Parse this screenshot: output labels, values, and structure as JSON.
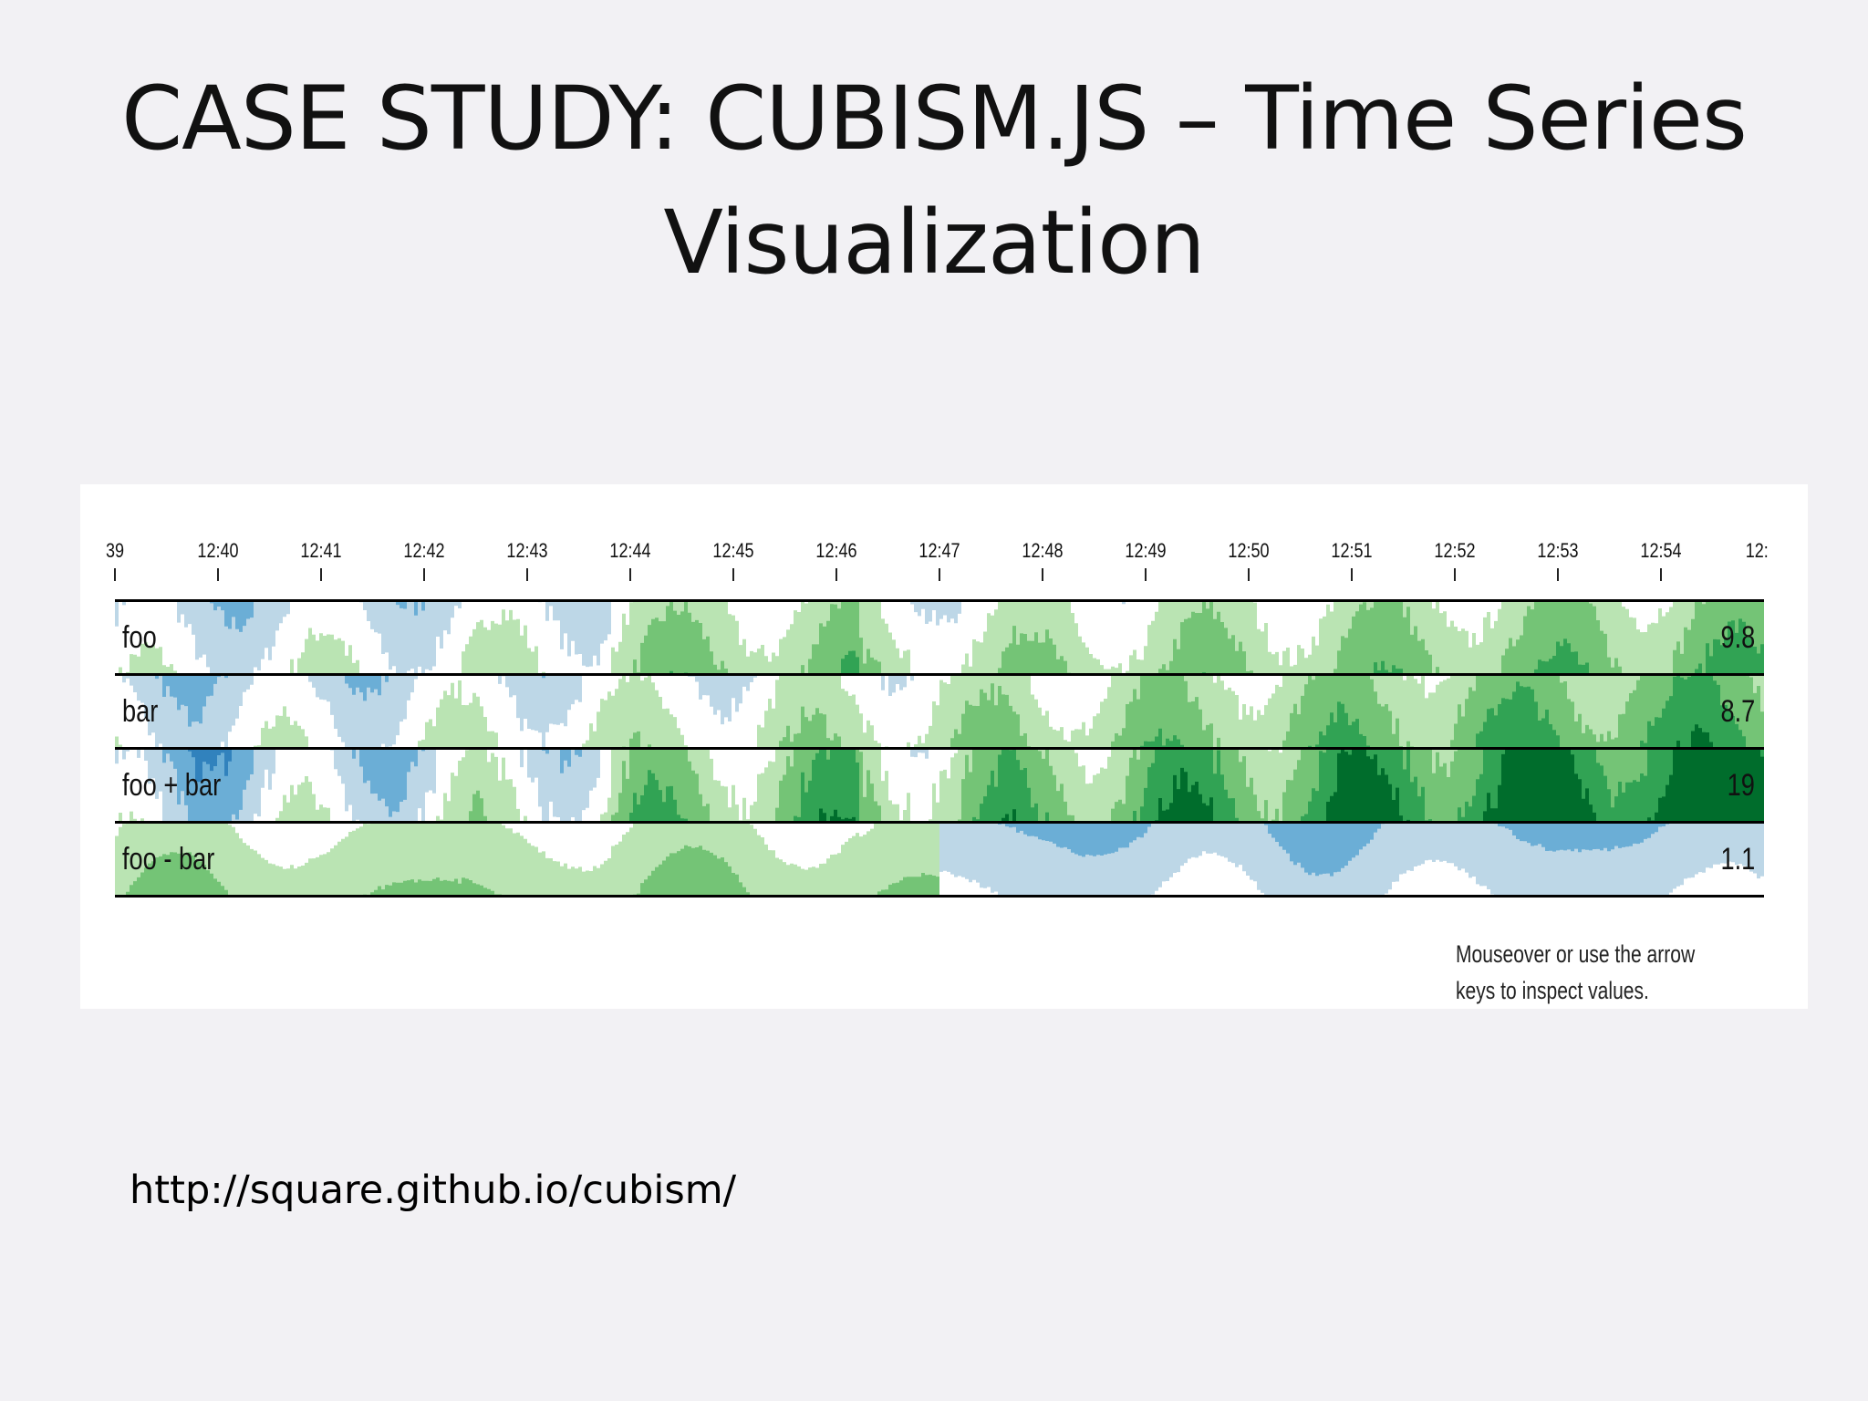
{
  "slide": {
    "title_line1": "CASE STUDY: CUBISM.JS – Time Series",
    "title_line2": "Visualization",
    "source_url": "http://square.github.io/cubism/"
  },
  "chart_data": {
    "type": "area",
    "subtype": "horizon",
    "title": "",
    "x_ticks": [
      "39",
      "12:40",
      "12:41",
      "12:42",
      "12:43",
      "12:44",
      "12:45",
      "12:46",
      "12:47",
      "12:48",
      "12:49",
      "12:50",
      "12:51",
      "12:52",
      "12:53",
      "12:54",
      "12:"
    ],
    "series": [
      {
        "name": "foo",
        "current_value": "9.8"
      },
      {
        "name": "bar",
        "current_value": "8.7"
      },
      {
        "name": "foo + bar",
        "current_value": "19"
      },
      {
        "name": "foo - bar",
        "current_value": "1.1"
      }
    ],
    "legend_position": "none",
    "positive_colors": [
      "#bae4b3",
      "#74c476",
      "#31a354",
      "#006d2c"
    ],
    "negative_colors": [
      "#bdd7e7",
      "#6baed6",
      "#3182bd",
      "#08519c"
    ]
  },
  "hint": {
    "line1": "Mouseover or use the arrow",
    "line2": "keys to inspect values."
  }
}
